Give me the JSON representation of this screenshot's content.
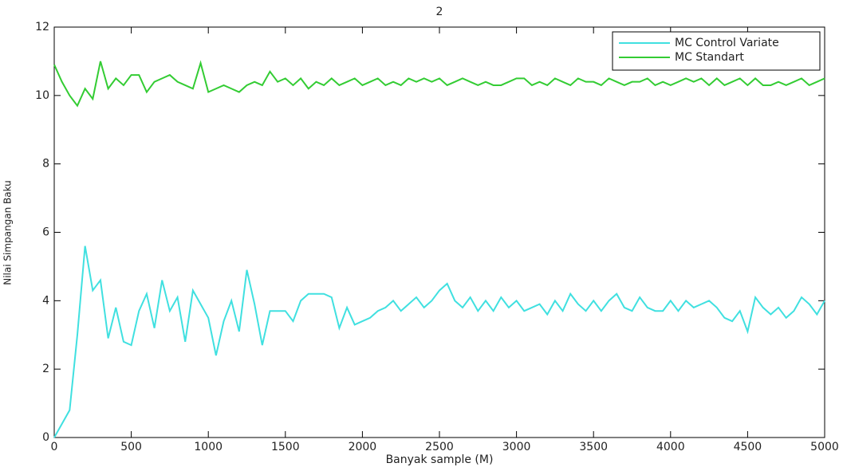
{
  "chart_data": {
    "type": "line",
    "title": "2",
    "x_label": "Banyak sample (M)",
    "y_label": "Nilai Simpangan Baku",
    "x": [
      0,
      50,
      100,
      150,
      200,
      250,
      300,
      350,
      400,
      450,
      500,
      550,
      600,
      650,
      700,
      750,
      800,
      850,
      900,
      950,
      1000,
      1050,
      1100,
      1150,
      1200,
      1250,
      1300,
      1350,
      1400,
      1450,
      1500,
      1550,
      1600,
      1650,
      1700,
      1750,
      1800,
      1850,
      1900,
      1950,
      2000,
      2050,
      2100,
      2150,
      2200,
      2250,
      2300,
      2350,
      2400,
      2450,
      2500,
      2550,
      2600,
      2650,
      2700,
      2750,
      2800,
      2850,
      2900,
      2950,
      3000,
      3050,
      3100,
      3150,
      3200,
      3250,
      3300,
      3350,
      3400,
      3450,
      3500,
      3550,
      3600,
      3650,
      3700,
      3750,
      3800,
      3850,
      3900,
      3950,
      4000,
      4050,
      4100,
      4150,
      4200,
      4250,
      4300,
      4350,
      4400,
      4450,
      4500,
      4550,
      4600,
      4650,
      4700,
      4750,
      4800,
      4850,
      4900,
      4950,
      5000
    ],
    "series": [
      {
        "name": "MC Control Variate",
        "color": "#40e0e0",
        "values": [
          0,
          0.4,
          0.8,
          3,
          5.6,
          4.3,
          4.6,
          2.9,
          3.8,
          2.8,
          2.7,
          3.7,
          4.2,
          3.2,
          4.6,
          3.7,
          4.1,
          2.8,
          4.3,
          3.9,
          3.5,
          2.4,
          3.4,
          4.0,
          3.1,
          4.9,
          3.9,
          2.7,
          3.7,
          3.7,
          3.7,
          3.4,
          4.0,
          4.2,
          4.2,
          4.2,
          4.1,
          3.2,
          3.8,
          3.3,
          3.4,
          3.5,
          3.7,
          3.8,
          4.0,
          3.7,
          3.9,
          4.1,
          3.8,
          4.0,
          4.3,
          4.5,
          4.0,
          3.8,
          4.1,
          3.7,
          4.0,
          3.7,
          4.1,
          3.8,
          4.0,
          3.7,
          3.8,
          3.9,
          3.6,
          4.0,
          3.7,
          4.2,
          3.9,
          3.7,
          4.0,
          3.7,
          4.0,
          4.2,
          3.8,
          3.7,
          4.1,
          3.8,
          3.7,
          3.7,
          4.0,
          3.7,
          4.0,
          3.8,
          3.9,
          4.0,
          3.8,
          3.5,
          3.4,
          3.7,
          3.1,
          4.1,
          3.8,
          3.6,
          3.8,
          3.5,
          3.7,
          4.1,
          3.9,
          3.6,
          4.0
        ]
      },
      {
        "name": "MC Standart",
        "color": "#33cc33",
        "values": [
          10.9,
          10.4,
          10.0,
          9.7,
          10.2,
          9.9,
          11.0,
          10.2,
          10.5,
          10.3,
          10.6,
          10.6,
          10.1,
          10.4,
          10.5,
          10.6,
          10.4,
          10.3,
          10.2,
          10.95,
          10.1,
          10.2,
          10.3,
          10.2,
          10.1,
          10.3,
          10.4,
          10.3,
          10.7,
          10.4,
          10.5,
          10.3,
          10.5,
          10.2,
          10.4,
          10.3,
          10.5,
          10.3,
          10.4,
          10.5,
          10.3,
          10.4,
          10.5,
          10.3,
          10.4,
          10.3,
          10.5,
          10.4,
          10.5,
          10.4,
          10.5,
          10.3,
          10.4,
          10.5,
          10.4,
          10.3,
          10.4,
          10.3,
          10.3,
          10.4,
          10.5,
          10.5,
          10.3,
          10.4,
          10.3,
          10.5,
          10.4,
          10.3,
          10.5,
          10.4,
          10.4,
          10.3,
          10.5,
          10.4,
          10.3,
          10.4,
          10.4,
          10.5,
          10.3,
          10.4,
          10.3,
          10.4,
          10.5,
          10.4,
          10.5,
          10.3,
          10.5,
          10.3,
          10.4,
          10.5,
          10.3,
          10.5,
          10.3,
          10.3,
          10.4,
          10.3,
          10.4,
          10.5,
          10.3,
          10.4,
          10.5
        ]
      }
    ],
    "xlim": [
      0,
      5000
    ],
    "xticks": [
      0,
      500,
      1000,
      1500,
      2000,
      2500,
      3000,
      3500,
      4000,
      4500,
      5000
    ],
    "ylim": [
      0,
      12
    ],
    "yticks": [
      0,
      2,
      4,
      6,
      8,
      10,
      12
    ],
    "legend": "upper right",
    "grid": false
  }
}
